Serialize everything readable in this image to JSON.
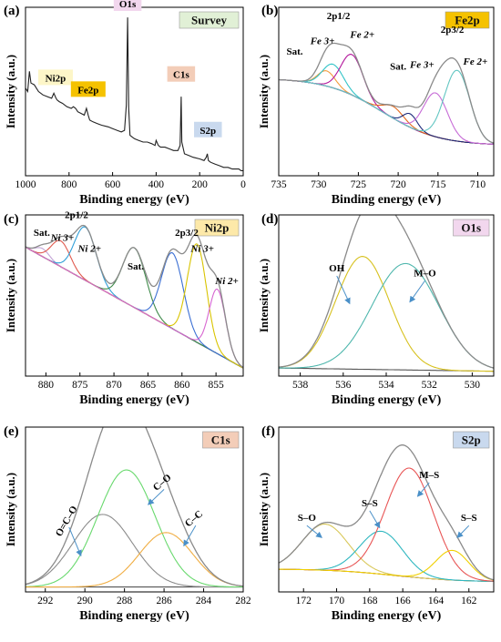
{
  "colors": {
    "blue_label": "#1f6fb5",
    "envelope": "#8a8a8a",
    "arrow": "#4a90c8"
  },
  "chart_data": [
    {
      "panel": "(a)",
      "type": "line",
      "badge": "Survey",
      "badge_color": "#e1f0d6",
      "xlabel": "Binding energy (eV)",
      "ylabel": "Intensity (a.u.)",
      "xlim": [
        1000,
        0
      ],
      "xticks": [
        1000,
        800,
        600,
        400,
        200,
        0
      ],
      "ylim": [
        0,
        1
      ],
      "series": [
        {
          "color": "#222222",
          "x": [
            1000,
            990,
            982,
            975,
            960,
            940,
            920,
            900,
            880,
            870,
            860,
            855,
            845,
            830,
            810,
            790,
            780,
            770,
            760,
            745,
            730,
            720,
            712,
            705,
            690,
            670,
            650,
            620,
            600,
            580,
            560,
            545,
            537,
            531,
            526,
            520,
            500,
            480,
            460,
            440,
            420,
            405,
            400,
            390,
            380,
            360,
            340,
            320,
            300,
            290,
            285,
            282,
            270,
            250,
            230,
            200,
            180,
            170,
            165,
            160,
            150,
            130,
            110,
            90,
            70,
            50,
            30,
            20,
            10,
            0
          ],
          "y": [
            0.52,
            0.5,
            0.62,
            0.55,
            0.54,
            0.5,
            0.48,
            0.47,
            0.46,
            0.49,
            0.46,
            0.45,
            0.44,
            0.43,
            0.41,
            0.4,
            0.41,
            0.4,
            0.38,
            0.37,
            0.36,
            0.4,
            0.36,
            0.33,
            0.32,
            0.31,
            0.3,
            0.29,
            0.28,
            0.27,
            0.26,
            0.27,
            0.42,
            0.94,
            0.4,
            0.24,
            0.22,
            0.21,
            0.2,
            0.2,
            0.19,
            0.18,
            0.21,
            0.18,
            0.17,
            0.17,
            0.16,
            0.15,
            0.15,
            0.18,
            0.47,
            0.2,
            0.13,
            0.12,
            0.11,
            0.1,
            0.09,
            0.11,
            0.13,
            0.09,
            0.08,
            0.07,
            0.06,
            0.05,
            0.05,
            0.04,
            0.04,
            0.04,
            0.03,
            0.03
          ]
        }
      ],
      "annotations": [
        {
          "text": "O1s",
          "x": 531,
          "y": 1.0,
          "bg": "#f2d7ee"
        },
        {
          "text": "Ni2p",
          "x": 862,
          "y": 0.56,
          "bg": "#fdf6c8"
        },
        {
          "text": "Fe2p",
          "x": 712,
          "y": 0.49,
          "bg": "#f5c200"
        },
        {
          "text": "C1s",
          "x": 285,
          "y": 0.58,
          "bg": "#f3cdb8"
        },
        {
          "text": "S2p",
          "x": 162,
          "y": 0.25,
          "bg": "#c9d9ee"
        }
      ]
    },
    {
      "panel": "(b)",
      "type": "line",
      "badge": "Fe2p",
      "badge_color": "#f5c200",
      "xlabel": "Binding energy (eV)",
      "ylabel": "Intensity (a.u.)",
      "xlim": [
        735,
        708
      ],
      "xticks": [
        735,
        730,
        725,
        720,
        715,
        710
      ],
      "ylim": [
        0,
        1
      ],
      "baseline": {
        "type": "sigmoid_step",
        "y_left": 0.58,
        "y_right": 0.18,
        "center": 722,
        "width": 3.5,
        "color": "#7a1f1f"
      },
      "peaks": [
        {
          "center": 729.0,
          "height": 0.09,
          "width": 1.1,
          "color": "#f39c3d"
        },
        {
          "center": 728.2,
          "height": 0.14,
          "width": 1.3,
          "color": "#30c3c7"
        },
        {
          "center": 725.8,
          "height": 0.24,
          "width": 1.4,
          "color": "#b3179c"
        },
        {
          "center": 720.6,
          "height": 0.07,
          "width": 1.3,
          "color": "#e36a1d"
        },
        {
          "center": 718.5,
          "height": 0.08,
          "width": 0.9,
          "color": "#1b2a7a"
        },
        {
          "center": 715.3,
          "height": 0.26,
          "width": 1.5,
          "color": "#c66ad6"
        },
        {
          "center": 712.6,
          "height": 0.42,
          "width": 1.6,
          "color": "#62c6c2"
        }
      ],
      "envelope_color": "#8a8a8a",
      "annotations": [
        {
          "text": "2p1/2",
          "x": 727.5,
          "y": 0.93,
          "color": "#1f6fb5"
        },
        {
          "text": "2p3/2",
          "x": 713.2,
          "y": 0.85,
          "color": "#1f6fb5"
        },
        {
          "text": "Sat.",
          "x": 733.0,
          "y": 0.72
        },
        {
          "text": "Fe 3+",
          "x": 729.5,
          "y": 0.78,
          "italic": true
        },
        {
          "text": "Fe 2+",
          "x": 724.5,
          "y": 0.82,
          "italic": true
        },
        {
          "text": "Sat.",
          "x": 720.0,
          "y": 0.63
        },
        {
          "text": "Fe 3+",
          "x": 717.0,
          "y": 0.64,
          "italic": true
        },
        {
          "text": "Fe 2+",
          "x": 710.3,
          "y": 0.66,
          "italic": true
        }
      ]
    },
    {
      "panel": "(c)",
      "type": "line",
      "badge": "Ni2p",
      "badge_color": "#fde9a9",
      "xlabel": "Binding energy (eV)",
      "ylabel": "Intensity (a.u.)",
      "xlim": [
        883,
        851
      ],
      "xticks": [
        880,
        875,
        870,
        865,
        860,
        855
      ],
      "ylim": [
        0,
        1
      ],
      "baseline": {
        "type": "linear",
        "y_left": 0.8,
        "y_right": 0.05,
        "color": "#7a1f1f"
      },
      "peaks": [
        {
          "center": 880.5,
          "height": 0.05,
          "width": 1.0,
          "color": "#c2a3d6"
        },
        {
          "center": 877.8,
          "height": 0.16,
          "width": 1.4,
          "color": "#e05a4e"
        },
        {
          "center": 874.2,
          "height": 0.33,
          "width": 1.6,
          "color": "#2f9fd8"
        },
        {
          "center": 867.0,
          "height": 0.37,
          "width": 1.7,
          "color": "#3f8a4a"
        },
        {
          "center": 861.4,
          "height": 0.47,
          "width": 1.6,
          "color": "#3b6fd4"
        },
        {
          "center": 857.8,
          "height": 0.61,
          "width": 1.4,
          "color": "#d9c400"
        },
        {
          "center": 854.8,
          "height": 0.4,
          "width": 1.2,
          "color": "#d765d0"
        }
      ],
      "envelope_color": "#8a8a8a",
      "annotations": [
        {
          "text": "2p1/2",
          "x": 875.5,
          "y": 0.98,
          "color": "#1f6fb5"
        },
        {
          "text": "2p3/2",
          "x": 859.3,
          "y": 0.87,
          "color": "#1f6fb5"
        },
        {
          "text": "Sat.",
          "x": 880.6,
          "y": 0.87
        },
        {
          "text": "Ni 3+",
          "x": 877.6,
          "y": 0.84,
          "italic": true
        },
        {
          "text": "Ni 2+",
          "x": 873.6,
          "y": 0.77,
          "italic": true
        },
        {
          "text": "Sat.",
          "x": 866.8,
          "y": 0.66
        },
        {
          "text": "Ni 3+",
          "x": 857.0,
          "y": 0.77,
          "italic": true
        },
        {
          "text": "Ni 2+",
          "x": 853.4,
          "y": 0.57,
          "italic": true
        }
      ]
    },
    {
      "panel": "(d)",
      "type": "line",
      "badge": "O1s",
      "badge_color": "#f2d7ee",
      "xlabel": "Binding energy (eV)",
      "ylabel": "Intensity (a.u.)",
      "xlim": [
        539,
        529
      ],
      "xticks": [
        538,
        536,
        534,
        532,
        530
      ],
      "ylim": [
        0,
        1
      ],
      "baseline": {
        "type": "linear",
        "y_left": 0.05,
        "y_right": 0.03,
        "color": "#555555"
      },
      "peaks": [
        {
          "center": 535.1,
          "height": 0.7,
          "width": 1.25,
          "color": "#d7c11e"
        },
        {
          "center": 533.1,
          "height": 0.66,
          "width": 1.55,
          "color": "#4fb7ad"
        }
      ],
      "envelope_color": "#8a8a8a",
      "annotations": [
        {
          "text": "OH",
          "x": 536.3,
          "y": 0.65,
          "arrow_to": [
            535.7,
            0.45
          ]
        },
        {
          "text": "M–O",
          "x": 532.2,
          "y": 0.62,
          "arrow_to": [
            532.9,
            0.46
          ]
        }
      ]
    },
    {
      "panel": "(e)",
      "type": "line",
      "badge": "C1s",
      "badge_color": "#f3cdb8",
      "xlabel": "Binding energy (eV)",
      "ylabel": "Intensity (a.u.)",
      "xlim": [
        293,
        282
      ],
      "xticks": [
        292,
        290,
        288,
        286,
        284,
        282
      ],
      "ylim": [
        0,
        1
      ],
      "baseline": {
        "type": "linear",
        "y_left": 0.03,
        "y_right": 0.03,
        "color": "#555555"
      },
      "peaks": [
        {
          "center": 289.1,
          "height": 0.44,
          "width": 1.5,
          "color": "#8c8c8c"
        },
        {
          "center": 287.9,
          "height": 0.71,
          "width": 1.45,
          "color": "#69d96e"
        },
        {
          "center": 285.9,
          "height": 0.33,
          "width": 1.35,
          "color": "#f0ad42"
        }
      ],
      "envelope_color": "#8a8a8a",
      "annotations": [
        {
          "text": "O=C–O",
          "x": 290.8,
          "y": 0.42,
          "rotate": -60,
          "arrow_to": [
            290.2,
            0.22
          ]
        },
        {
          "text": "C–O",
          "x": 286.0,
          "y": 0.65,
          "rotate": -40,
          "arrow_to": [
            286.8,
            0.53
          ]
        },
        {
          "text": "C–C",
          "x": 284.4,
          "y": 0.43,
          "rotate": -40,
          "arrow_to": [
            285.0,
            0.28
          ]
        }
      ]
    },
    {
      "panel": "(f)",
      "type": "line",
      "badge": "S2p",
      "badge_color": "#c9d9ee",
      "xlabel": "Binding energy (eV)",
      "ylabel": "Intensity (a.u.)",
      "xlim": [
        173.5,
        160.5
      ],
      "xticks": [
        172,
        170,
        168,
        166,
        164,
        162
      ],
      "ylim": [
        0,
        1
      ],
      "baseline": {
        "type": "sigmoid_step",
        "y_left": 0.14,
        "y_right": 0.06,
        "center": 166.5,
        "width": 2.0,
        "color": "#7a1f1f"
      },
      "peaks": [
        {
          "center": 170.7,
          "height": 0.28,
          "width": 1.4,
          "color": "#d9c85a"
        },
        {
          "center": 167.3,
          "height": 0.26,
          "width": 1.3,
          "color": "#2fb7c0"
        },
        {
          "center": 165.6,
          "height": 0.66,
          "width": 1.45,
          "color": "#e85555"
        },
        {
          "center": 163.0,
          "height": 0.18,
          "width": 1.0,
          "color": "#f0d000"
        }
      ],
      "envelope_color": "#8a8a8a",
      "annotations": [
        {
          "text": "S–O",
          "x": 171.8,
          "y": 0.43,
          "arrow_to": [
            170.9,
            0.33
          ]
        },
        {
          "text": "S–S",
          "x": 168.0,
          "y": 0.52,
          "arrow_to": [
            167.4,
            0.39
          ]
        },
        {
          "text": "M–S",
          "x": 164.4,
          "y": 0.69,
          "arrow_to": [
            165.1,
            0.58
          ]
        },
        {
          "text": "S–S",
          "x": 162.0,
          "y": 0.43,
          "arrow_to": [
            162.7,
            0.33
          ]
        }
      ]
    }
  ]
}
